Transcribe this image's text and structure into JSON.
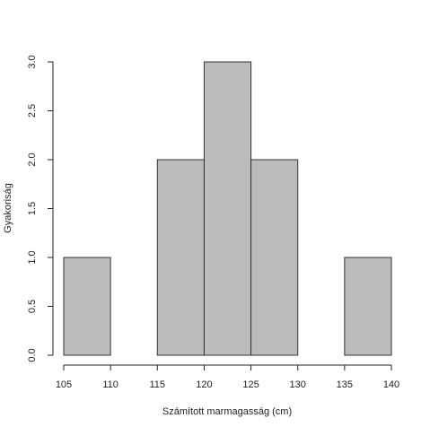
{
  "chart_data": {
    "type": "bar",
    "subtype": "histogram",
    "bins": [
      {
        "start": 105,
        "end": 110,
        "value": 1
      },
      {
        "start": 110,
        "end": 115,
        "value": 0
      },
      {
        "start": 115,
        "end": 120,
        "value": 2
      },
      {
        "start": 120,
        "end": 125,
        "value": 3
      },
      {
        "start": 125,
        "end": 130,
        "value": 2
      },
      {
        "start": 130,
        "end": 135,
        "value": 0
      },
      {
        "start": 135,
        "end": 140,
        "value": 1
      }
    ],
    "xlabel": "Számított marmagasság (cm)",
    "ylabel": "Gyakoriság",
    "xlim": [
      105,
      140
    ],
    "ylim": [
      0,
      3
    ],
    "x_ticks": [
      "105",
      "110",
      "115",
      "120",
      "125",
      "130",
      "135",
      "140"
    ],
    "y_ticks": [
      "0.0",
      "0.5",
      "1.0",
      "1.5",
      "2.0",
      "2.5",
      "3.0"
    ],
    "bar_color": "#bbbcbe",
    "bar_border_color": "#333333",
    "grid": false,
    "legend": "none"
  }
}
